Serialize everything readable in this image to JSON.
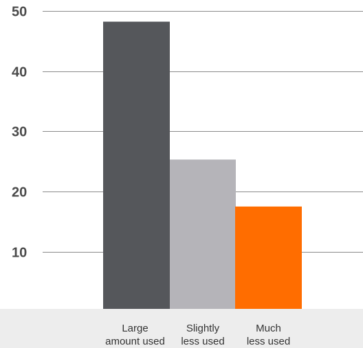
{
  "chart_data": {
    "type": "bar",
    "categories": [
      [
        "Large",
        "amount used"
      ],
      [
        "Slightly",
        "less used"
      ],
      [
        "Much",
        "less used"
      ]
    ],
    "values": [
      48.2,
      25.3,
      17.5
    ],
    "yticks": [
      10,
      20,
      30,
      40,
      50
    ],
    "ylim": [
      0.5,
      51.8
    ],
    "title": "",
    "xlabel": "",
    "ylabel": "",
    "grid": true,
    "colors": {
      "bars": [
        "#55575b",
        "#b5b4b9",
        "#ff6d00"
      ],
      "gridline": "#8a8a8a",
      "axis_band": "#ededed",
      "tick_text": "#4a4a4a",
      "category_text": "#333333"
    }
  }
}
